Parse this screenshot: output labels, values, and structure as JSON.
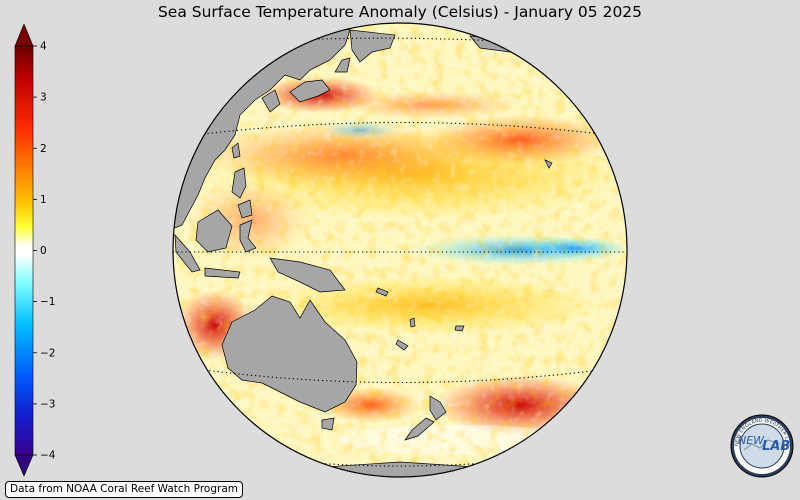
{
  "title": "Sea Surface Temperature Anomaly (Celsius) - January 05 2025",
  "colorbar": {
    "ticks": [
      "4",
      "3",
      "2",
      "1",
      "0",
      "−1",
      "−2",
      "−3",
      "−4"
    ],
    "colors": [
      "#5a0000",
      "#b40000",
      "#e60000",
      "#ff5a00",
      "#ff9a00",
      "#ffd200",
      "#ffff40",
      "#ffffff",
      "#ffffff",
      "#7affff",
      "#00c8ff",
      "#008cff",
      "#0040ff",
      "#2000c0",
      "#300080"
    ],
    "under_color": "#300080",
    "over_color": "#7a0000"
  },
  "map": {
    "ocean_base": "#fff7c0",
    "land_color": "#a6a6a6"
  },
  "credit": "Data from NOAA Coral Reef Watch Program",
  "logo": {
    "text_left": "NEW",
    "text_right": "LAB",
    "ring_text": "NEW ENGLAND WEATHER LAB"
  }
}
